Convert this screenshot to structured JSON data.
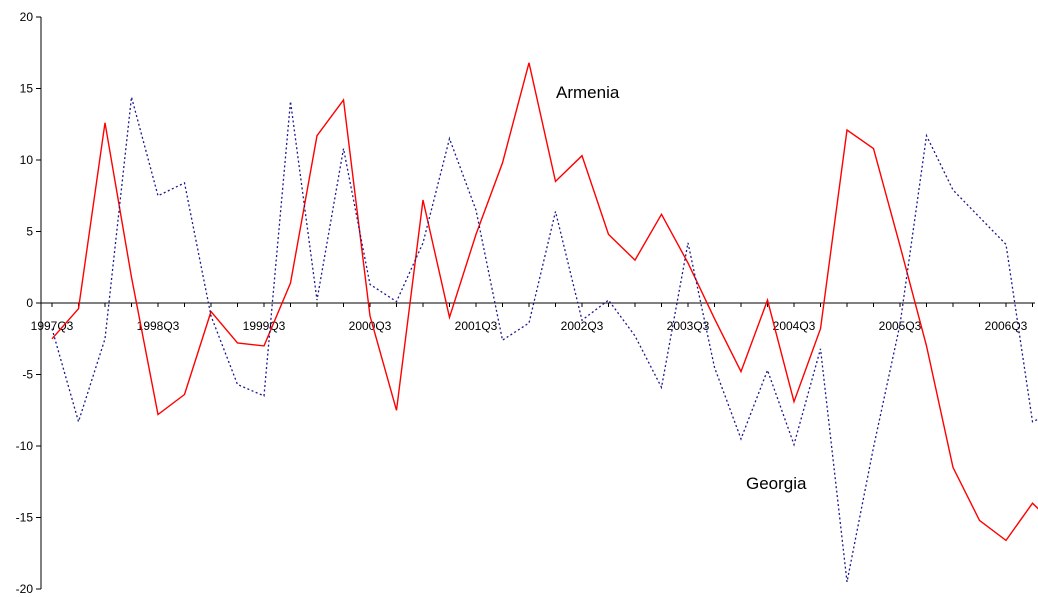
{
  "chart_data": {
    "type": "line",
    "title": "",
    "xlabel": "",
    "ylabel": "",
    "ylim": [
      -20,
      20
    ],
    "yticks": [
      -20,
      -15,
      -10,
      -5,
      0,
      5,
      10,
      15,
      20
    ],
    "ytick_labels": [
      "-20",
      "-15",
      "-10",
      "-5",
      "0",
      "5",
      "10",
      "15",
      "20"
    ],
    "x": [
      "1997Q3",
      "1997Q4",
      "1998Q1",
      "1998Q2",
      "1998Q3",
      "1998Q4",
      "1999Q1",
      "1999Q2",
      "1999Q3",
      "1999Q4",
      "2000Q1",
      "2000Q2",
      "2000Q3",
      "2000Q4",
      "2001Q1",
      "2001Q2",
      "2001Q3",
      "2001Q4",
      "2002Q1",
      "2002Q2",
      "2002Q3",
      "2002Q4",
      "2003Q1",
      "2003Q2",
      "2003Q3",
      "2003Q4",
      "2004Q1",
      "2004Q2",
      "2004Q3",
      "2004Q4",
      "2005Q1",
      "2005Q2",
      "2005Q3",
      "2005Q4",
      "2006Q1",
      "2006Q2",
      "2006Q3",
      "2006Q4",
      "2007Q1"
    ],
    "xtick_labels": [
      "1997Q3",
      "1998Q3",
      "1999Q3",
      "2000Q3",
      "2001Q3",
      "2002Q3",
      "2003Q3",
      "2004Q3",
      "2005Q3",
      "2006Q3"
    ],
    "grid": false,
    "legend": "none",
    "series": [
      {
        "name": "Armenia",
        "color": "#ff0000",
        "style": "solid",
        "values": [
          -2.5,
          -0.4,
          12.6,
          1.8,
          -7.8,
          -6.4,
          -0.6,
          -2.8,
          -3.0,
          1.4,
          11.7,
          14.2,
          -0.9,
          -7.5,
          7.2,
          -1.0,
          4.8,
          9.8,
          16.8,
          8.5,
          10.3,
          4.8,
          3.0,
          6.2,
          2.8,
          -1.1,
          -4.8,
          0.2,
          -6.9,
          -1.8,
          12.1,
          10.8,
          4.0,
          -3.0,
          -11.5,
          -15.2,
          -16.6,
          -14.0,
          -15.8
        ]
      },
      {
        "name": "Georgia",
        "color": "#1a1a8c",
        "style": "dotted",
        "values": [
          -1.8,
          -8.3,
          -2.5,
          14.4,
          7.5,
          8.4,
          -0.9,
          -5.7,
          -6.5,
          14.1,
          0.2,
          10.8,
          1.3,
          0.1,
          4.2,
          11.5,
          6.5,
          -2.6,
          -1.4,
          6.4,
          -1.2,
          0.2,
          -2.3,
          -5.9,
          4.2,
          -4.5,
          -9.5,
          -4.7,
          -9.9,
          -3.2,
          -19.5,
          -10.1,
          -1.5,
          11.7,
          7.9,
          6.0,
          4.1,
          -8.3,
          -7.5
        ]
      }
    ]
  }
}
